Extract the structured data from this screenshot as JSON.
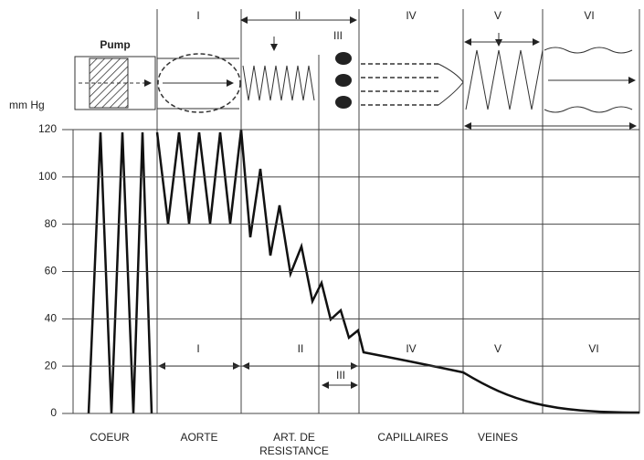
{
  "y_axis": {
    "label": "mm Hg",
    "ticks": [
      0,
      20,
      40,
      60,
      80,
      100,
      120
    ],
    "lim": [
      0,
      120
    ]
  },
  "pump_label": "Pump",
  "top_sections": [
    "I",
    "II",
    "III",
    "IV",
    "V",
    "VI"
  ],
  "bottom_sections": [
    "I",
    "II",
    "III",
    "IV",
    "V",
    "VI"
  ],
  "regions": [
    [
      "COEUR"
    ],
    [
      "AORTE"
    ],
    [
      "ART. DE",
      "RESISTANCE"
    ],
    [
      "CAPILLAIRES"
    ],
    [
      "VEINES"
    ]
  ]
}
